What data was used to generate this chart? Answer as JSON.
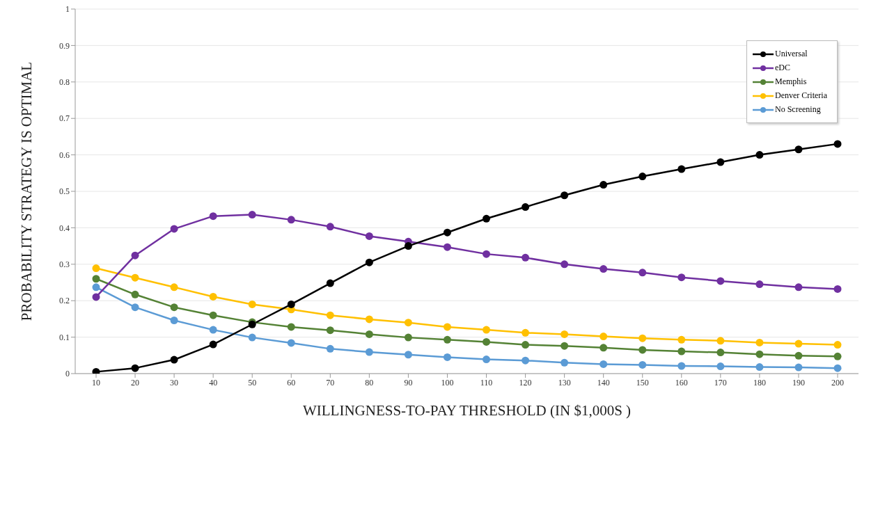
{
  "chart_data": {
    "type": "line",
    "xlabel": "WILLINGNESS-TO-PAY THRESHOLD (IN $1,000S )",
    "ylabel": "PROBABILITY STRATEGY IS OPTIMAL",
    "categories": [
      "10",
      "20",
      "30",
      "40",
      "50",
      "60",
      "70",
      "80",
      "90",
      "100",
      "110",
      "120",
      "130",
      "140",
      "150",
      "160",
      "170",
      "180",
      "190",
      "200"
    ],
    "series": [
      {
        "name": "Universal",
        "color": "#000000",
        "values": [
          0.005,
          0.015,
          0.038,
          0.08,
          0.135,
          0.19,
          0.248,
          0.305,
          0.35,
          0.387,
          0.425,
          0.457,
          0.489,
          0.518,
          0.541,
          0.561,
          0.58,
          0.6,
          0.615,
          0.63
        ]
      },
      {
        "name": "eDC",
        "color": "#7030a0",
        "values": [
          0.21,
          0.324,
          0.397,
          0.432,
          0.436,
          0.422,
          0.403,
          0.377,
          0.362,
          0.347,
          0.328,
          0.318,
          0.3,
          0.287,
          0.277,
          0.264,
          0.254,
          0.245,
          0.237,
          0.232
        ]
      },
      {
        "name": "Memphis",
        "color": "#548235",
        "values": [
          0.26,
          0.217,
          0.182,
          0.16,
          0.141,
          0.128,
          0.119,
          0.108,
          0.099,
          0.093,
          0.087,
          0.079,
          0.076,
          0.071,
          0.065,
          0.061,
          0.058,
          0.053,
          0.049,
          0.047
        ]
      },
      {
        "name": "Denver Criteria",
        "color": "#ffc000",
        "values": [
          0.289,
          0.263,
          0.237,
          0.211,
          0.19,
          0.176,
          0.16,
          0.149,
          0.14,
          0.128,
          0.12,
          0.112,
          0.108,
          0.102,
          0.097,
          0.093,
          0.09,
          0.085,
          0.082,
          0.079
        ]
      },
      {
        "name": "No Screening",
        "color": "#5b9bd5",
        "values": [
          0.237,
          0.182,
          0.146,
          0.12,
          0.099,
          0.084,
          0.068,
          0.059,
          0.052,
          0.045,
          0.039,
          0.036,
          0.03,
          0.026,
          0.024,
          0.021,
          0.02,
          0.018,
          0.017,
          0.015
        ]
      }
    ],
    "ylim": [
      0,
      1
    ],
    "yticks": [
      0,
      0.1,
      0.2,
      0.3,
      0.4,
      0.5,
      0.6,
      0.7,
      0.8,
      0.9,
      1
    ],
    "grid": "y",
    "legend": "top right",
    "marker": "circle",
    "line_style": "solid"
  }
}
